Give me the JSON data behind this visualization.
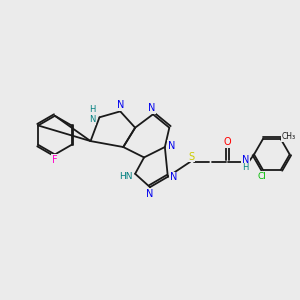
{
  "background_color": "#ebebeb",
  "bond_color": "#1a1a1a",
  "atom_colors": {
    "N": "#0000ee",
    "NH": "#008080",
    "O": "#ff0000",
    "S": "#cccc00",
    "F": "#ff00cc",
    "Cl": "#00bb00",
    "C": "#1a1a1a",
    "H": "#1a1a1a"
  },
  "figsize": [
    3.0,
    3.0
  ],
  "dpi": 100
}
